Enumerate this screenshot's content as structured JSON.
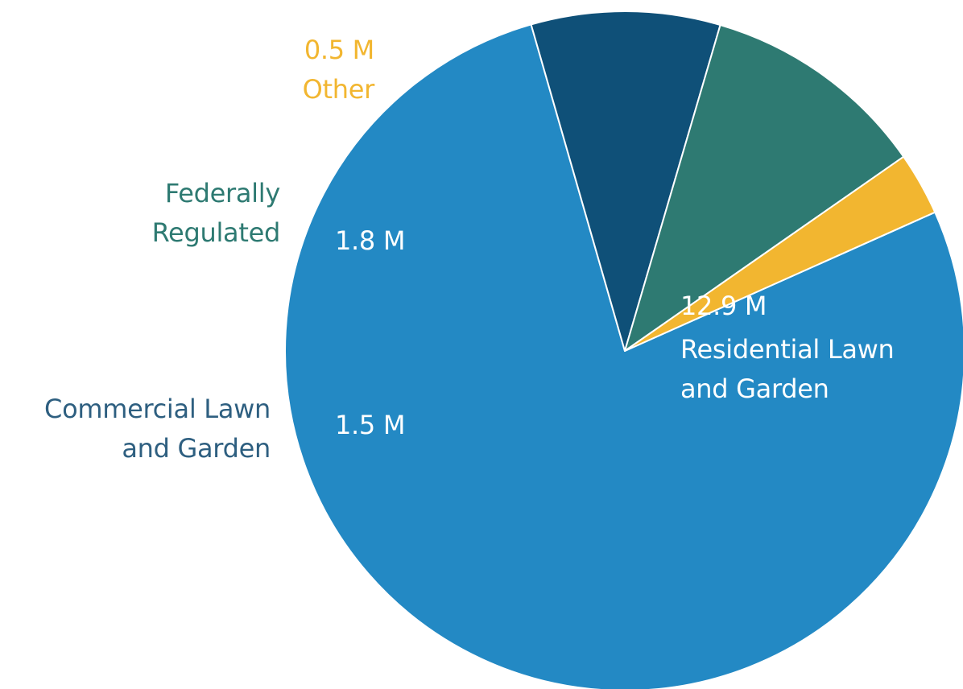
{
  "chart_data": {
    "type": "pie",
    "slices": [
      {
        "label": "Residential Lawn and Garden",
        "value": 12.9,
        "value_label": "12.9 M",
        "color": "#2389c4",
        "label_color": "#ffffff"
      },
      {
        "label": "Commercial Lawn and Garden",
        "value": 1.5,
        "value_label": "1.5 M",
        "color": "#0f5078",
        "label_color": "#2e5f80"
      },
      {
        "label": "Federally Regulated",
        "value": 1.8,
        "value_label": "1.8 M",
        "color": "#2e7a72",
        "label_color": "#2e7a72"
      },
      {
        "label": "Other",
        "value": 0.5,
        "value_label": "0.5 M",
        "color": "#f2b630",
        "label_color": "#f2b630"
      }
    ],
    "title": "",
    "legend": "none"
  },
  "labels": {
    "residential": {
      "value": "12.9 M",
      "line1": "Residential Lawn",
      "line2": "and Garden"
    },
    "commercial": {
      "value": "1.5 M",
      "line1": "Commercial Lawn",
      "line2": "and Garden"
    },
    "federal": {
      "value": "1.8 M",
      "line1": "Federally",
      "line2": "Regulated"
    },
    "other": {
      "value": "0.5 M",
      "line1": "Other"
    }
  }
}
